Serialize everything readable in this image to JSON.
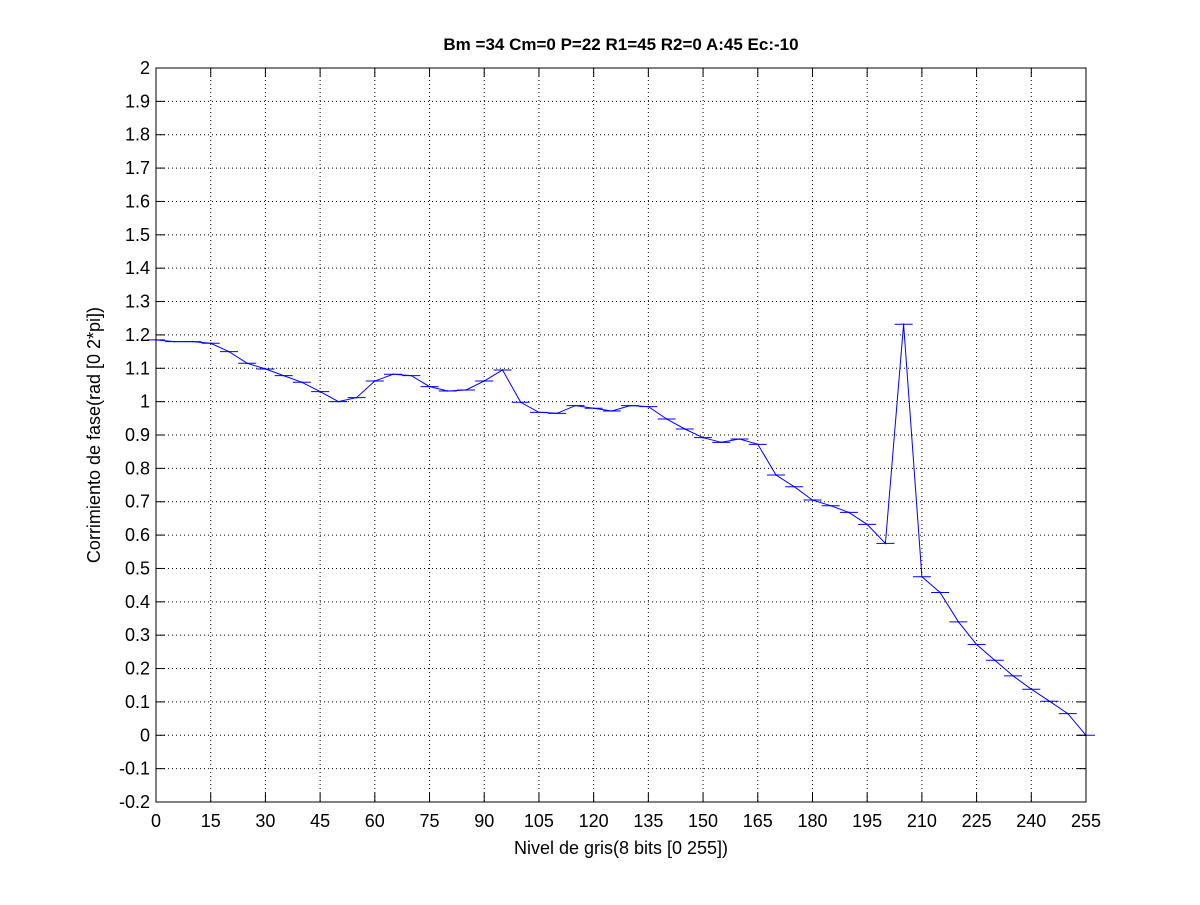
{
  "chart_data": {
    "type": "line",
    "title": "Bm =34  Cm=0  P=22  R1=45  R2=0  A:45  Ec:-10",
    "xlabel": "Nivel de gris(8 bits [0 255])",
    "ylabel": "Corrimiento de fase(rad [0 2*pi])",
    "xlim": [
      0,
      255
    ],
    "ylim": [
      -0.2,
      2
    ],
    "xticks": [
      "0",
      "15",
      "30",
      "45",
      "60",
      "75",
      "90",
      "105",
      "120",
      "135",
      "150",
      "165",
      "180",
      "195",
      "210",
      "225",
      "240",
      "255"
    ],
    "yticks": [
      "-0.2",
      "-0.1",
      "0",
      "0.1",
      "0.2",
      "0.3",
      "0.4",
      "0.5",
      "0.6",
      "0.7",
      "0.8",
      "0.9",
      "1",
      "1.1",
      "1.2",
      "1.3",
      "1.4",
      "1.5",
      "1.6",
      "1.7",
      "1.8",
      "1.9",
      "2"
    ],
    "grid": true,
    "series": [
      {
        "color": "#0000ff",
        "errorbar_caps": true,
        "x": [
          0,
          5,
          10,
          15,
          20,
          25,
          30,
          35,
          40,
          45,
          50,
          55,
          60,
          65,
          70,
          75,
          80,
          85,
          90,
          95,
          100,
          105,
          110,
          115,
          120,
          125,
          130,
          135,
          140,
          145,
          150,
          155,
          160,
          165,
          170,
          175,
          180,
          185,
          190,
          195,
          200,
          205,
          210,
          215,
          220,
          225,
          230,
          235,
          240,
          245,
          250,
          255
        ],
        "y": [
          1.185,
          1.18,
          1.18,
          1.175,
          1.15,
          1.115,
          1.098,
          1.078,
          1.058,
          1.03,
          1.0,
          1.012,
          1.062,
          1.082,
          1.078,
          1.045,
          1.032,
          1.035,
          1.062,
          1.095,
          0.998,
          0.968,
          0.965,
          0.988,
          0.98,
          0.972,
          0.988,
          0.985,
          0.948,
          0.918,
          0.892,
          0.878,
          0.888,
          0.872,
          0.78,
          0.745,
          0.705,
          0.688,
          0.668,
          0.632,
          0.575,
          1.232,
          0.475,
          0.428,
          0.34,
          0.272,
          0.225,
          0.178,
          0.138,
          0.102,
          0.065,
          0.0
        ]
      }
    ]
  }
}
